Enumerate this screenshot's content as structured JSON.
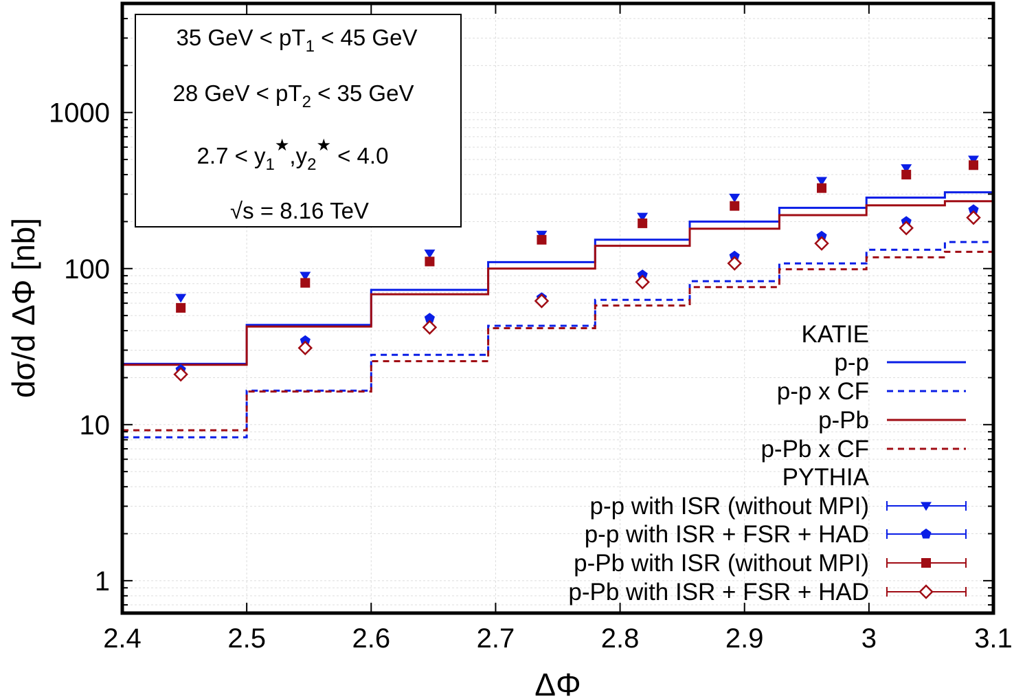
{
  "chart_data": {
    "type": "step",
    "title": "",
    "xlabel": "ΔΦ",
    "ylabel": "dσ/d ΔΦ [nb]",
    "xlim": [
      2.4,
      3.1
    ],
    "ylim": [
      0.62,
      5000
    ],
    "yscale": "log",
    "grid": true,
    "legend_position": "bottom-right",
    "x_ticks": [
      "2.4",
      "2.5",
      "2.6",
      "2.7",
      "2.8",
      "2.9",
      "3",
      "3.1"
    ],
    "y_ticks": [
      "1",
      "10",
      "100",
      "1000"
    ],
    "info_box": {
      "line1": {
        "pre": "35 GeV < pT",
        "sub": "1",
        "post": " < 45 GeV"
      },
      "line2": {
        "pre": "28 GeV < pT",
        "sub": "2",
        "post": " < 35 GeV"
      },
      "line3": {
        "a": "2.7 < y",
        "sub1": "1",
        "star1": "★",
        "comma": ",y",
        "sub2": "2",
        "star2": "★",
        "b": " < 4.0"
      },
      "line4": {
        "root": "√",
        "text": "s = 8.16 TeV"
      }
    },
    "bin_edges": [
      2.4,
      2.5,
      2.6,
      2.694,
      2.78,
      2.856,
      2.928,
      2.998,
      3.061,
      3.1
    ],
    "bin_centers": [
      2.447,
      2.547,
      2.647,
      2.737,
      2.818,
      2.892,
      2.962,
      3.03,
      3.084
    ],
    "histograms": [
      {
        "name": "p-p",
        "style": "solid",
        "color": "#0a1ee6",
        "values": [
          24.5,
          43.5,
          73,
          110,
          153,
          200,
          245,
          285,
          308
        ]
      },
      {
        "name": "p-p x CF",
        "style": "dashed",
        "color": "#0a1ee6",
        "values": [
          8.3,
          16.5,
          28,
          43,
          63,
          83,
          108,
          132,
          148
        ]
      },
      {
        "name": "p-Pb",
        "style": "solid",
        "color": "#a00c14",
        "values": [
          24.2,
          42.5,
          68.5,
          100,
          140,
          180,
          220,
          254,
          270
        ]
      },
      {
        "name": "p-Pb x CF",
        "style": "dashed",
        "color": "#a00c14",
        "values": [
          9.2,
          16.3,
          25.5,
          41.5,
          58,
          76,
          99,
          118,
          128
        ]
      }
    ],
    "points": [
      {
        "name": "p-p with ISR (without MPI)",
        "marker": "triangle-down",
        "color": "#0a1ee6",
        "values": [
          65,
          90,
          125,
          165,
          215,
          285,
          365,
          440,
          500
        ]
      },
      {
        "name": "p-p with ISR + FSR + HAD",
        "marker": "pentagon",
        "color": "#0a1ee6",
        "values": [
          22.5,
          34.5,
          48,
          65,
          91,
          120,
          161,
          200,
          238
        ]
      },
      {
        "name": "p-Pb with ISR (without MPI)",
        "marker": "square",
        "color": "#a00c14",
        "values": [
          56,
          81,
          111,
          153,
          195,
          252,
          328,
          400,
          460
        ]
      },
      {
        "name": "p-Pb with ISR + FSR + HAD",
        "marker": "diamond-open",
        "color": "#a00c14",
        "values": [
          21,
          31,
          42,
          62,
          82,
          108,
          145,
          182,
          212
        ]
      }
    ],
    "legend": {
      "header_katie": "KATIE",
      "header_pythia": "PYTHIA"
    }
  }
}
